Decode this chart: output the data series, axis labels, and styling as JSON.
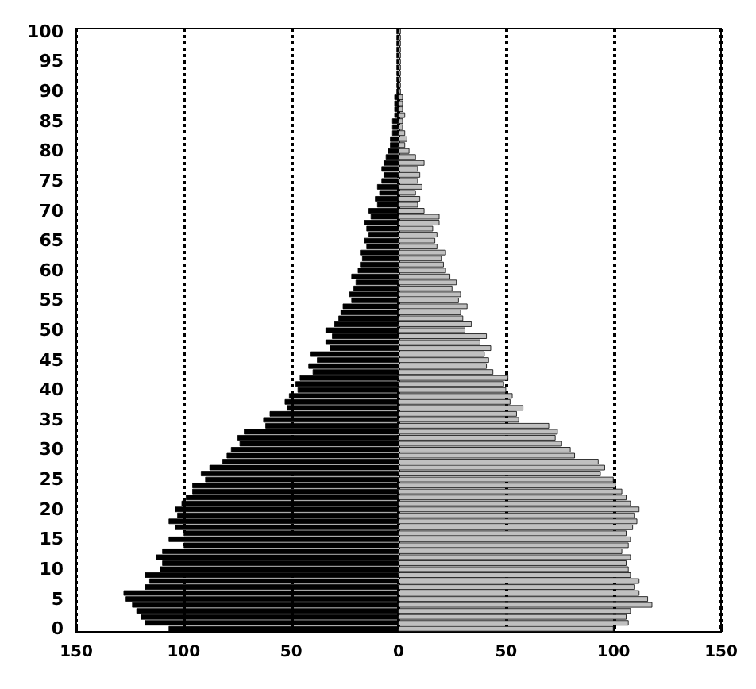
{
  "chart_data": {
    "type": "bar",
    "orientation": "horizontal",
    "stacked": true,
    "grid": "x",
    "categories": [
      "100",
      null,
      null,
      null,
      null,
      "95",
      null,
      null,
      null,
      null,
      "90",
      null,
      null,
      null,
      null,
      "85",
      null,
      null,
      null,
      null,
      "80",
      null,
      null,
      null,
      null,
      "75",
      null,
      null,
      null,
      null,
      "70",
      null,
      null,
      null,
      null,
      "65",
      null,
      null,
      null,
      null,
      "60",
      null,
      null,
      null,
      null,
      "55",
      null,
      null,
      null,
      null,
      "50",
      null,
      null,
      null,
      null,
      "45",
      null,
      null,
      null,
      null,
      "40",
      null,
      null,
      null,
      null,
      "35",
      null,
      null,
      null,
      null,
      "30",
      null,
      null,
      null,
      null,
      "25",
      null,
      null,
      null,
      null,
      "20",
      null,
      null,
      null,
      null,
      "15",
      null,
      null,
      null,
      null,
      "10",
      null,
      null,
      null,
      null,
      "5",
      null,
      null,
      null,
      null,
      "0"
    ],
    "xlim": [
      -150,
      150
    ],
    "xticks": [
      {
        "value": -150,
        "label": "150"
      },
      {
        "value": -100,
        "label": "100"
      },
      {
        "value": -50,
        "label": "50"
      },
      0,
      50,
      100,
      150
    ],
    "series": [
      {
        "color": "#000000",
        "values": [
          -1,
          -1,
          -1,
          -1,
          -1,
          -1,
          -1,
          -1,
          -1,
          -1,
          -1,
          -2,
          -2,
          -2,
          -2,
          -3,
          -3,
          -3,
          -4,
          -4,
          -5,
          -6,
          -7,
          -8,
          -7,
          -8,
          -10,
          -9,
          -11,
          -10,
          -14,
          -13,
          -16,
          -15,
          -14,
          -16,
          -15,
          -18,
          -17,
          -18,
          -19,
          -22,
          -20,
          -21,
          -23,
          -22,
          -26,
          -27,
          -28,
          -30,
          -34,
          -31,
          -34,
          -32,
          -41,
          -38,
          -42,
          -40,
          -46,
          -48,
          -47,
          -51,
          -53,
          -52,
          -60,
          -63,
          -62,
          -72,
          -75,
          -74,
          -78,
          -80,
          -82,
          -88,
          -92,
          -90,
          -96,
          -96,
          -99,
          -101,
          -104,
          -103,
          -107,
          -104,
          -100,
          -107,
          -100,
          -110,
          -113,
          -110,
          -111,
          -118,
          -116,
          -118,
          -128,
          -127,
          -124,
          -122,
          -120,
          -118,
          -107
        ]
      },
      {
        "color": "#c0c0c0",
        "values": [
          1,
          1,
          1,
          1,
          1,
          1,
          1,
          1,
          1,
          1,
          1,
          2,
          2,
          2,
          3,
          2,
          2,
          3,
          4,
          3,
          5,
          8,
          12,
          9,
          10,
          9,
          11,
          8,
          10,
          9,
          12,
          19,
          19,
          16,
          18,
          17,
          18,
          22,
          20,
          21,
          22,
          24,
          27,
          25,
          29,
          28,
          32,
          29,
          30,
          34,
          31,
          41,
          38,
          43,
          40,
          42,
          41,
          44,
          51,
          49,
          50,
          53,
          52,
          58,
          55,
          56,
          70,
          74,
          73,
          76,
          80,
          82,
          93,
          96,
          94,
          100,
          101,
          104,
          106,
          108,
          112,
          110,
          111,
          109,
          106,
          108,
          107,
          104,
          108,
          106,
          107,
          108,
          112,
          110,
          112,
          116,
          118,
          108,
          106,
          107,
          100
        ]
      }
    ]
  }
}
